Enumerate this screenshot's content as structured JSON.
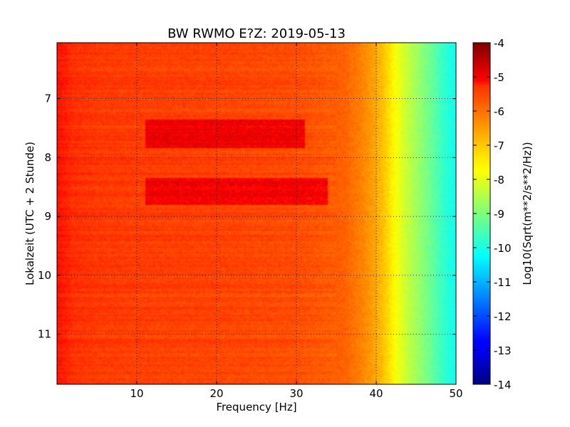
{
  "chart_data": {
    "type": "heatmap",
    "title": "BW RWMO E?Z: 2019-05-13",
    "xlabel": "Frequency [Hz]",
    "ylabel": "Lokalzeit (UTC + 2 Stunde)",
    "xlim": [
      0,
      50
    ],
    "ylim": [
      11.85,
      6.05
    ],
    "y_axis_inverted": true,
    "x_ticks": [
      10,
      20,
      30,
      40,
      50
    ],
    "y_ticks": [
      7,
      8,
      9,
      10,
      11
    ],
    "grid": true,
    "grid_style": "dotted",
    "colormap": "jet",
    "colorbar": {
      "label": "Log10(Sqrt(m**2/s**2/Hz))",
      "range": [
        -14,
        -4
      ],
      "ticks": [
        -4,
        -5,
        -6,
        -7,
        -8,
        -9,
        -10,
        -11,
        -12,
        -13,
        -14
      ]
    },
    "frequency_profile": {
      "frequency_hz": [
        0,
        2,
        5,
        10,
        20,
        30,
        36,
        38,
        40,
        41,
        42,
        43,
        44,
        45,
        46,
        47,
        48,
        49,
        50
      ],
      "log10_amplitude": [
        -5.4,
        -5.7,
        -5.8,
        -5.85,
        -5.9,
        -6.0,
        -6.2,
        -6.5,
        -6.9,
        -7.2,
        -7.6,
        -8.0,
        -8.35,
        -8.65,
        -8.95,
        -9.25,
        -9.6,
        -9.9,
        -10.1
      ]
    },
    "high_amplitude_bands": [
      {
        "time": [
          7.35,
          7.85
        ],
        "frequency_hz": [
          11,
          31
        ],
        "log10_amplitude": -5.1
      },
      {
        "time": [
          8.35,
          8.8
        ],
        "frequency_hz": [
          11,
          34
        ],
        "log10_amplitude": -5.15
      }
    ]
  },
  "colorbar_labels": [
    "-4",
    "-5",
    "-6",
    "-7",
    "-8",
    "-9",
    "-10",
    "-11",
    "-12",
    "-13",
    "-14"
  ],
  "x_tick_labels": [
    "10",
    "20",
    "30",
    "40",
    "50"
  ],
  "y_tick_labels": [
    "7",
    "8",
    "9",
    "10",
    "11"
  ]
}
